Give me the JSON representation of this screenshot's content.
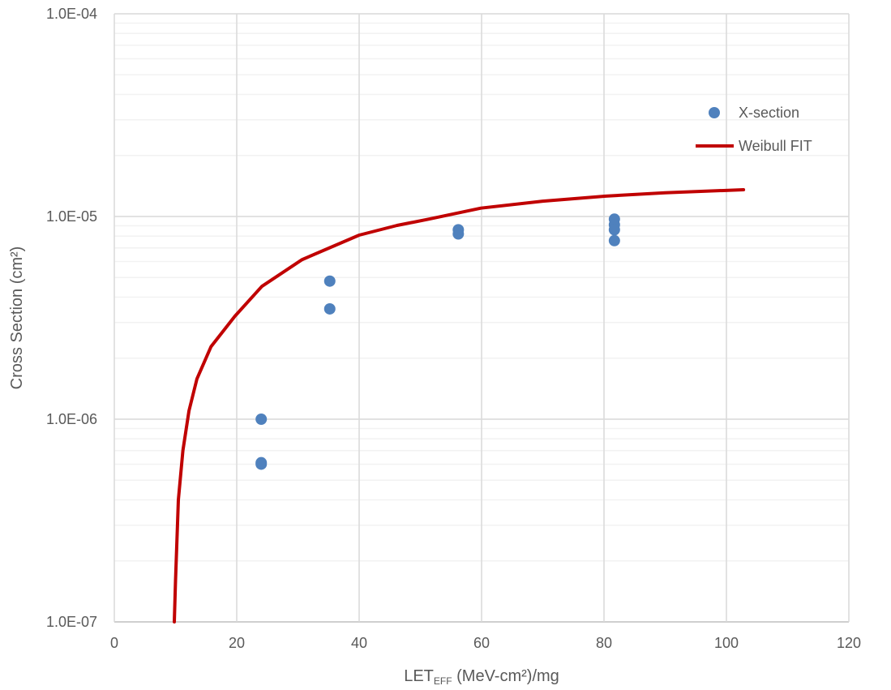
{
  "chart_data": {
    "type": "scatter",
    "title": "",
    "xlabel": {
      "main": "LET",
      "sub": "EFF",
      "rest": " (MeV-cm²)/mg"
    },
    "ylabel": "Cross Section (cm²)",
    "xlim": [
      0,
      120
    ],
    "ylim": [
      1e-07,
      0.0001
    ],
    "yscale": "log",
    "grid": true,
    "legend_placement": "top-right",
    "x_ticks": [
      "0",
      "20",
      "40",
      "60",
      "80",
      "100",
      "120"
    ],
    "y_ticks": [
      "1.0E-07",
      "1.0E-06",
      "1.0E-05",
      "1.0E-04"
    ],
    "series": [
      {
        "name": "X-section",
        "kind": "markers",
        "color": "#4F81BD",
        "points": [
          [
            24.0,
            1e-06
          ],
          [
            24.0,
            6.1e-07
          ],
          [
            24.0,
            6e-07
          ],
          [
            35.2,
            4.8e-06
          ],
          [
            35.2,
            3.5e-06
          ],
          [
            56.2,
            8.6e-06
          ],
          [
            56.2,
            8.2e-06
          ],
          [
            81.7,
            9.7e-06
          ],
          [
            81.7,
            9.1e-06
          ],
          [
            81.7,
            8.6e-06
          ],
          [
            81.7,
            7.6e-06
          ]
        ]
      },
      {
        "name": "Weibull FIT",
        "kind": "line",
        "color": "#C00000",
        "points": [
          [
            9.8,
            1e-07
          ],
          [
            10.0,
            1.6e-07
          ],
          [
            10.46,
            4e-07
          ],
          [
            11.2,
            7e-07
          ],
          [
            12.2,
            1.1e-06
          ],
          [
            13.5,
            1.58e-06
          ],
          [
            15.8,
            2.28e-06
          ],
          [
            19.7,
            3.22e-06
          ],
          [
            24.1,
            4.52e-06
          ],
          [
            30.7,
            6.13e-06
          ],
          [
            40.0,
            8.09e-06
          ],
          [
            46.2,
            9.04e-06
          ],
          [
            51.5,
            9.72e-06
          ],
          [
            59.9,
            1.1e-05
          ],
          [
            70.0,
            1.19e-05
          ],
          [
            80.3,
            1.26e-05
          ],
          [
            90.0,
            1.31e-05
          ],
          [
            102.8,
            1.355e-05
          ]
        ]
      }
    ]
  }
}
